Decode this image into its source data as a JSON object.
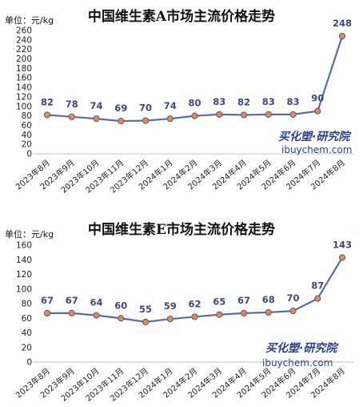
{
  "chart_data": [
    {
      "type": "line",
      "title": "中国维生素A市场主流价格走势",
      "unit_label": "单位：元/kg",
      "categories": [
        "2023年8月",
        "2023年9月",
        "2023年10月",
        "2023年11月",
        "2023年12月",
        "2024年1月",
        "2024年2月",
        "2024年3月",
        "2024年4月",
        "2024年5月",
        "2024年6月",
        "2024年7月",
        "2024年8月"
      ],
      "values": [
        82,
        78,
        74,
        69,
        70,
        74,
        80,
        83,
        82,
        83,
        83,
        90,
        248
      ],
      "ylim": [
        0,
        260
      ],
      "ystep": 20,
      "grid": false,
      "line_color": "#5b6aa3",
      "marker_fill": "#ed8a3f",
      "marker_stroke": "#4a5a99",
      "watermark": {
        "brand": "买化塑·研究院",
        "url": "ibuychem.com"
      }
    },
    {
      "type": "line",
      "title": "中国维生素E市场主流价格走势",
      "unit_label": "单位：元/kg",
      "categories": [
        "2023年8月",
        "2023年9月",
        "2023年10月",
        "2023年11月",
        "2023年12月",
        "2024年1月",
        "2024年2月",
        "2024年3月",
        "2024年4月",
        "2024年5月",
        "2024年6月",
        "2024年7月",
        "2024年8月"
      ],
      "values": [
        67,
        67,
        64,
        60,
        55,
        59,
        62,
        65,
        67,
        68,
        70,
        87,
        143
      ],
      "ylim": [
        0,
        160
      ],
      "ystep": 20,
      "grid": false,
      "line_color": "#5b6aa3",
      "marker_fill": "#ed8a3f",
      "marker_stroke": "#4a5a99",
      "watermark": {
        "brand": "买化塑·研究院",
        "url": "ibuychem.com"
      }
    }
  ]
}
